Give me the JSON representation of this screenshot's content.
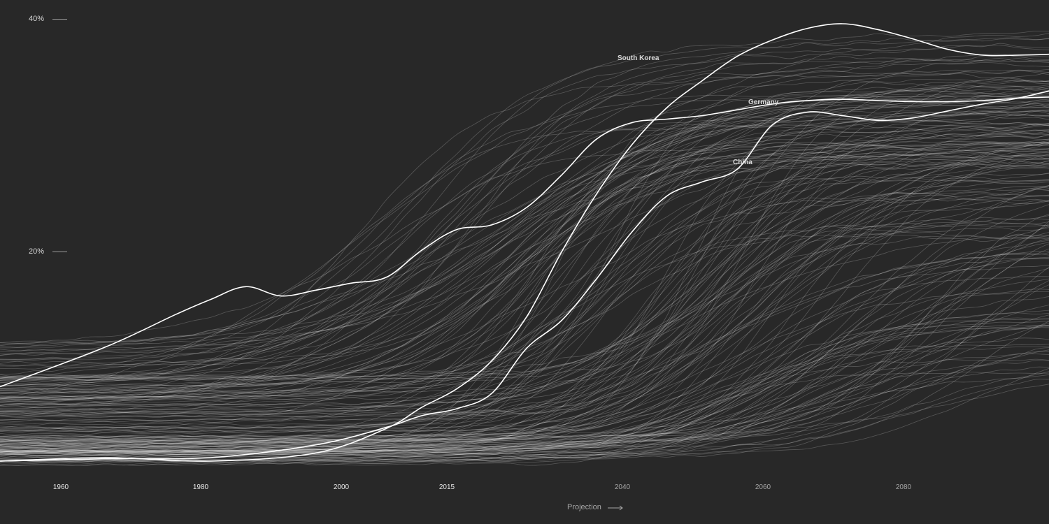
{
  "chart_data": {
    "type": "line",
    "title": "",
    "xlabel": "",
    "ylabel": "",
    "x_range": [
      1945,
      2100
    ],
    "ylim": [
      0,
      42
    ],
    "y_ticks": [
      {
        "value": 20,
        "label": "20%"
      },
      {
        "value": 40,
        "label": "40%"
      }
    ],
    "x_ticks": [
      {
        "value": 1960,
        "label": "1960",
        "projection": false
      },
      {
        "value": 1980,
        "label": "1980",
        "projection": false
      },
      {
        "value": 2000,
        "label": "2000",
        "projection": false
      },
      {
        "value": 2015,
        "label": "2015",
        "projection": false
      },
      {
        "value": 2040,
        "label": "2040",
        "projection": true
      },
      {
        "value": 2060,
        "label": "2060",
        "projection": true
      },
      {
        "value": 2080,
        "label": "2080",
        "projection": true
      }
    ],
    "projection_start": 2015,
    "projection_label": "Projection",
    "grid": false,
    "legend": "none",
    "background_lines": {
      "count": 190,
      "color": "#ffffff",
      "opacity": 0.22,
      "note_values": "unlabeled country series shown as faint grey lines"
    },
    "highlighted_series": [
      {
        "name": "South Korea",
        "x": [
          1945,
          1960,
          1975,
          1990,
          2000,
          2005,
          2010,
          2015,
          2020,
          2025,
          2030,
          2035,
          2040,
          2045,
          2050,
          2055,
          2060,
          2065,
          2070,
          2075,
          2080,
          2085,
          2090,
          2095,
          2100
        ],
        "y": [
          0.6,
          0.9,
          0.6,
          1.3,
          3.4,
          5.2,
          6.8,
          9.2,
          13.0,
          18.6,
          23.6,
          27.8,
          31.0,
          33.3,
          35.4,
          36.8,
          37.8,
          38.2,
          37.7,
          36.9,
          36.0,
          35.5,
          35.5,
          35.6,
          35.9
        ]
      },
      {
        "name": "Germany",
        "x": [
          1945,
          1960,
          1970,
          1975,
          1980,
          1985,
          1990,
          1995,
          2000,
          2005,
          2010,
          2015,
          2020,
          2025,
          2030,
          2035,
          2040,
          2045,
          2050,
          2055,
          2060,
          2065,
          2070,
          2075,
          2080,
          2085,
          2090,
          2095,
          2100
        ],
        "y": [
          7.0,
          10.4,
          13.2,
          14.5,
          15.6,
          14.8,
          15.3,
          15.9,
          16.4,
          18.7,
          20.5,
          20.9,
          22.4,
          25.2,
          28.3,
          29.7,
          30.0,
          30.3,
          30.8,
          31.3,
          31.6,
          31.7,
          31.6,
          31.5,
          31.5,
          31.6,
          31.8,
          31.9,
          31.9
        ]
      },
      {
        "name": "China",
        "x": [
          1945,
          1960,
          1975,
          1990,
          2000,
          2005,
          2010,
          2015,
          2020,
          2025,
          2030,
          2035,
          2040,
          2045,
          2050,
          2055,
          2060,
          2065,
          2070,
          2075,
          2080,
          2085,
          2090,
          2095,
          2100
        ],
        "y": [
          0.6,
          0.8,
          0.9,
          2.0,
          3.5,
          4.5,
          5.1,
          6.4,
          10.3,
          12.7,
          16.3,
          20.3,
          23.4,
          24.6,
          25.7,
          29.5,
          30.6,
          30.3,
          29.9,
          30.1,
          30.7,
          31.3,
          31.8,
          32.5,
          33.1
        ]
      }
    ]
  },
  "annotations": {
    "south_korea": "South Korea",
    "germany": "Germany",
    "china": "China"
  },
  "colors": {
    "background": "#282828",
    "highlight": "#ffffff",
    "background_line": "#ffffff",
    "tick_text": "#d6d6d6",
    "projection_text": "#a6a6a6"
  }
}
